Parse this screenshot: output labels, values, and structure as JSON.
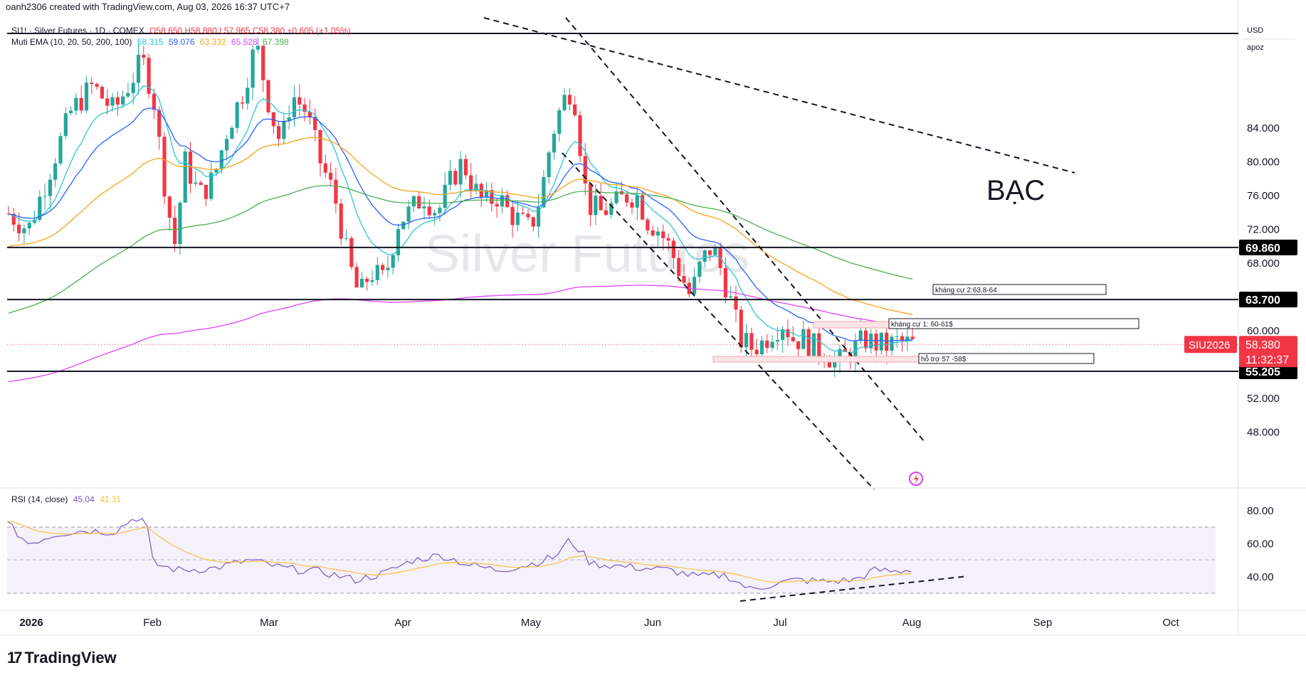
{
  "header": {
    "credit": "oanh2306 created with TradingView.com, Aug 03, 2026 16:37 UTC+7"
  },
  "legend": {
    "symbol": "SI1! · Silver Futures · 1D · COMEX",
    "ohlc": "O58.650 H58.880 L57.965 C58.380 +0.605 (+1.05%)",
    "ema_name": "Muti EMA (10, 20, 50, 200, 100)",
    "ema_values": [
      "58.315",
      "59.076",
      "63.332",
      "65.528",
      "67.398"
    ],
    "rsi_name": "RSI (14, close)",
    "rsi_values": [
      "45.04",
      "41.31"
    ]
  },
  "scale": {
    "currency": "USD",
    "user": "apoz"
  },
  "watermark": "Silver Futures",
  "title_text": "BẠC",
  "price_axis_labels": [
    "84.000",
    "80.000",
    "76.000",
    "72.000",
    "68.000",
    "60.000",
    "52.000",
    "48.000"
  ],
  "level_tags": [
    "69.860",
    "63.700",
    "55.205"
  ],
  "current_price": {
    "symbol": "SIU2026",
    "price": "58.380",
    "countdown": "11:32:37"
  },
  "rsi_axis_labels": [
    "80.00",
    "60.00",
    "40.00"
  ],
  "time_axis_labels": [
    "2026",
    "Feb",
    "Mar",
    "Apr",
    "May",
    "Jun",
    "Jul",
    "Aug",
    "Sep",
    "Oct"
  ],
  "annotations": {
    "resistance2": "kháng cự 2:63.8-64",
    "resistance1": "kháng cự 1: 60-61$",
    "support": "hỗ trợ 57 -58$"
  },
  "brand": "TradingView",
  "colors": {
    "up": "#26a69a",
    "down": "#f23645",
    "ema10": "#2ec5d6",
    "ema20": "#2962ff",
    "ema50": "#f7a21b",
    "ema200": "#e040fb",
    "ema100": "#4caf50",
    "rsi": "#7e57c2",
    "rsi_ma": "#f5c143",
    "tag_red": "#f23645",
    "line": "#131722"
  },
  "chart_data": {
    "type": "candlestick",
    "instrument": "SI1! Silver Futures 1D COMEX",
    "y_range": [
      45,
      92
    ],
    "horizontal_levels": [
      55.205,
      63.7,
      69.86,
      91.0
    ],
    "zones": [
      {
        "label": "kháng cự 2:63.8-64",
        "low": 63.8,
        "high": 64
      },
      {
        "label": "kháng cự 1: 60-61$",
        "low": 60,
        "high": 61
      },
      {
        "label": "hỗ trợ 57 -58$",
        "low": 57,
        "high": 58
      }
    ],
    "current_close": 58.38,
    "rsi_levels": [
      70,
      50,
      30
    ],
    "rsi_current": [
      45.04,
      41.31
    ]
  }
}
